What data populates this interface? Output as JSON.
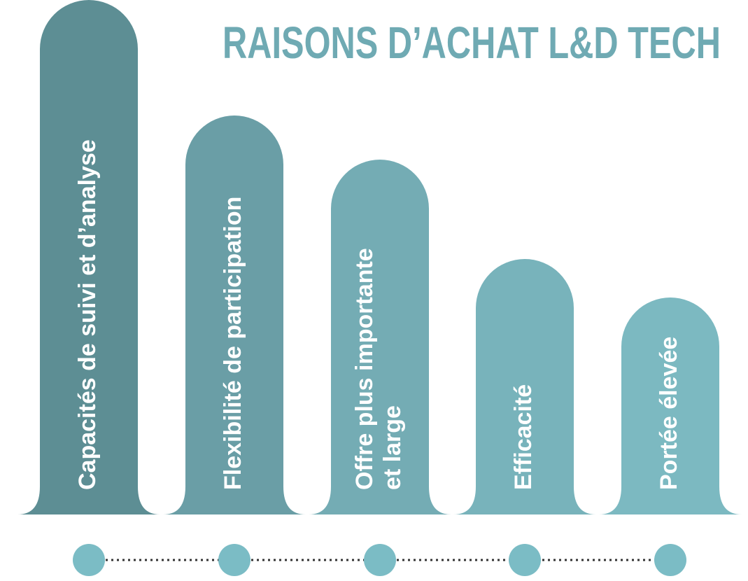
{
  "title": "RAISONS D’ACHAT L&D TECH",
  "items": [
    {
      "lines": [
        "Capacités de suivi et d’analyse"
      ]
    },
    {
      "lines": [
        "Flexibilité de participation"
      ]
    },
    {
      "lines": [
        "Offre plus importante",
        "et large"
      ]
    },
    {
      "lines": [
        "Efficacité"
      ]
    },
    {
      "lines": [
        "Portée élevée"
      ]
    }
  ]
}
